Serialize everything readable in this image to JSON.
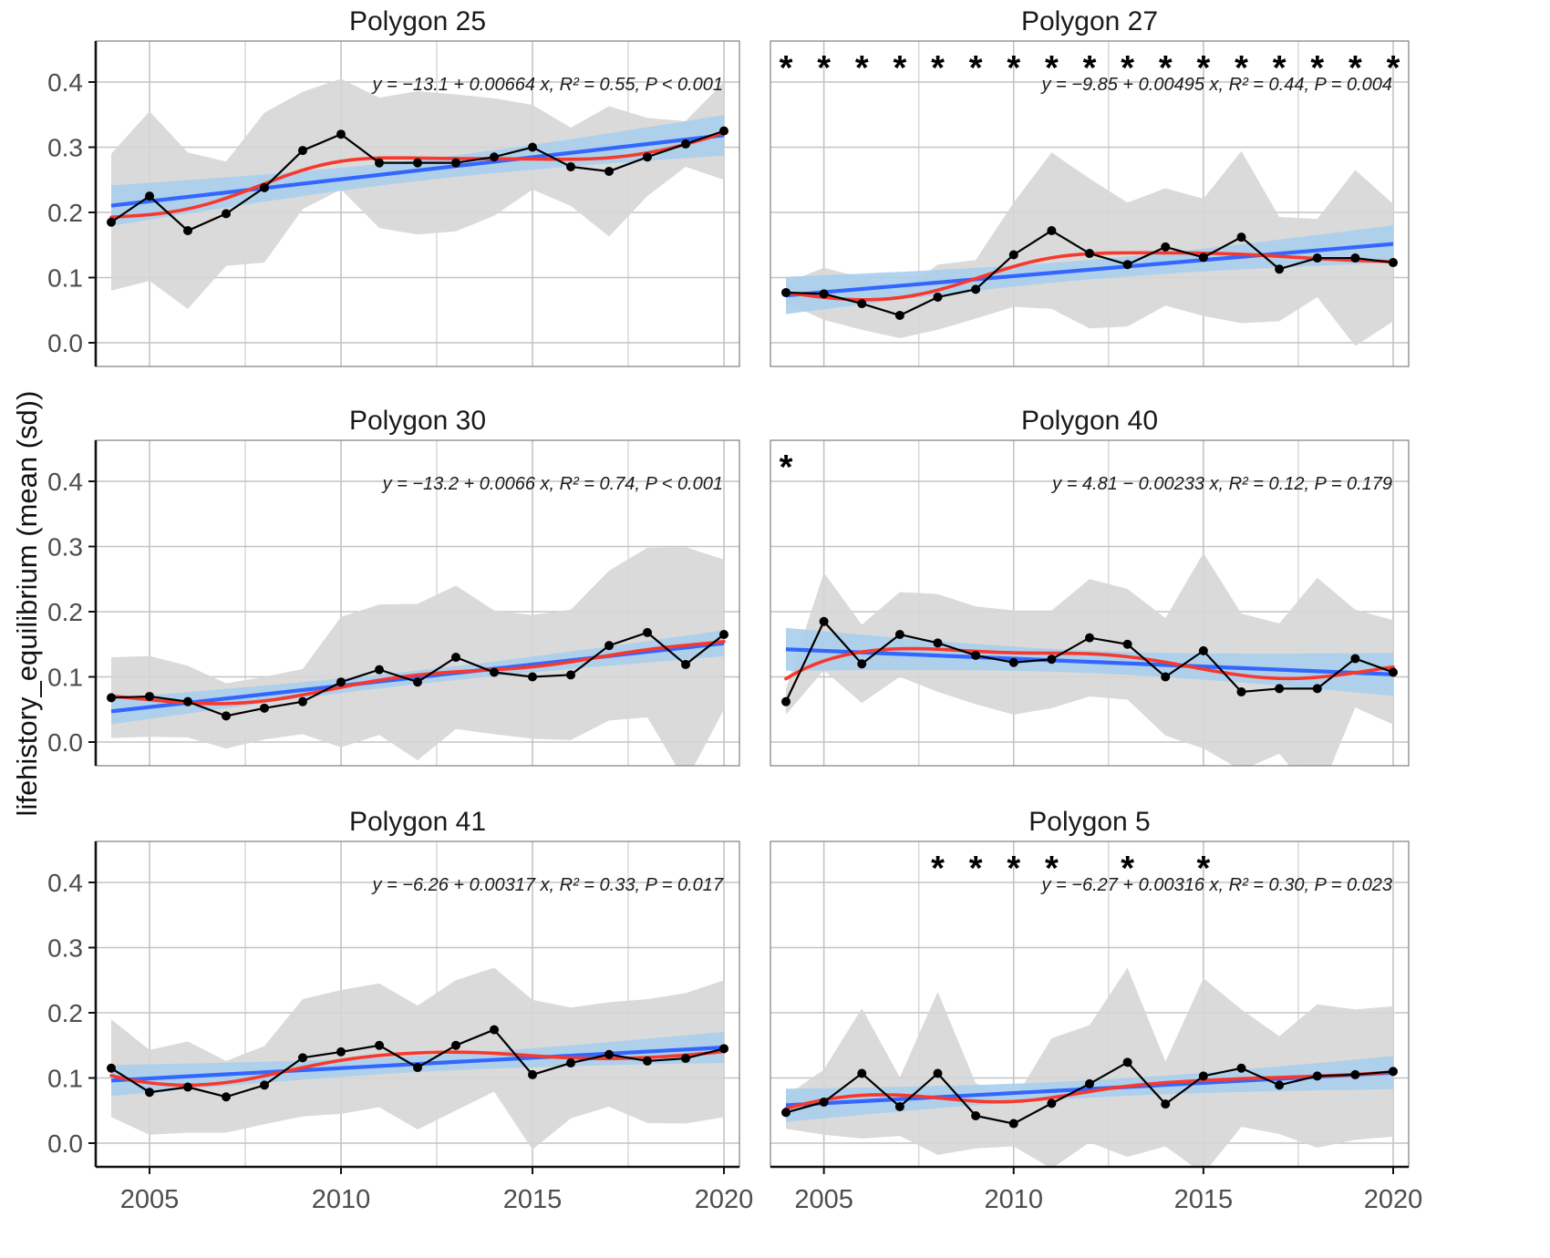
{
  "chart_data": {
    "type": "line",
    "title": "",
    "xlabel": "",
    "ylabel": "lifehistory_equilibrium (mean (sd))",
    "x": [
      2004,
      2005,
      2006,
      2007,
      2008,
      2009,
      2010,
      2011,
      2012,
      2013,
      2014,
      2015,
      2016,
      2017,
      2018,
      2019,
      2020
    ],
    "x_ticks": [
      2005,
      2010,
      2015,
      2020
    ],
    "x_minor_gridlines": [
      2007.5,
      2012.5,
      2017.5
    ],
    "y_ticks": [
      "0.0",
      "0.1",
      "0.2",
      "0.3",
      "0.4"
    ],
    "y_tick_values": [
      0.0,
      0.1,
      0.2,
      0.3,
      0.4
    ],
    "ylim": [
      -0.034,
      0.463
    ],
    "grid": "major-x, minor-x, major-y",
    "legend_position": "none",
    "series_roles": {
      "mean": "black points and line (annual mean)",
      "sd_ribbon": "gray band = mean ± sd",
      "trend": "blue linear regression with light-blue confidence band",
      "loess": "red smoothed curve"
    },
    "panels": [
      {
        "title": "Polygon 25",
        "equation": "y = −13.1 + 0.00664 x, R² = 0.55, P < 0.001",
        "asterisk_years": [],
        "mean": [
          0.185,
          0.225,
          0.172,
          0.198,
          0.238,
          0.295,
          0.32,
          0.276,
          0.276,
          0.276,
          0.285,
          0.3,
          0.27,
          0.263,
          0.285,
          0.305,
          0.325
        ],
        "sd": [
          0.105,
          0.13,
          0.12,
          0.08,
          0.115,
          0.09,
          0.085,
          0.1,
          0.11,
          0.105,
          0.09,
          0.065,
          0.06,
          0.1,
          0.06,
          0.035,
          0.075
        ]
      },
      {
        "title": "Polygon 27",
        "equation": "y = −9.85 + 0.00495 x, R² = 0.44, P = 0.004",
        "asterisk_years": [
          2004,
          2005,
          2006,
          2007,
          2008,
          2009,
          2010,
          2011,
          2012,
          2013,
          2014,
          2015,
          2016,
          2017,
          2018,
          2019,
          2020
        ],
        "mean": [
          0.077,
          0.075,
          0.06,
          0.042,
          0.07,
          0.082,
          0.135,
          0.172,
          0.137,
          0.12,
          0.147,
          0.131,
          0.162,
          0.113,
          0.13,
          0.13,
          0.123
        ],
        "sd": [
          0.015,
          0.04,
          0.04,
          0.035,
          0.05,
          0.045,
          0.08,
          0.12,
          0.115,
          0.095,
          0.09,
          0.09,
          0.132,
          0.08,
          0.06,
          0.135,
          0.09
        ]
      },
      {
        "title": "Polygon 30",
        "equation": "y = −13.2 + 0.0066 x, R² = 0.74, P < 0.001",
        "asterisk_years": [],
        "mean": [
          0.068,
          0.07,
          0.062,
          0.04,
          0.052,
          0.062,
          0.092,
          0.111,
          0.092,
          0.13,
          0.107,
          0.1,
          0.103,
          0.148,
          0.168,
          0.119,
          0.165
        ],
        "sd": [
          0.062,
          0.062,
          0.055,
          0.05,
          0.048,
          0.05,
          0.1,
          0.1,
          0.12,
          0.11,
          0.095,
          0.095,
          0.1,
          0.115,
          0.13,
          0.18,
          0.115
        ]
      },
      {
        "title": "Polygon 40",
        "equation": "y = 4.81 − 0.00233 x, R² = 0.12, P = 0.179",
        "asterisk_years": [
          2004
        ],
        "mean": [
          0.062,
          0.185,
          0.12,
          0.165,
          0.152,
          0.133,
          0.122,
          0.127,
          0.16,
          0.15,
          0.1,
          0.14,
          0.077,
          0.082,
          0.082,
          0.128,
          0.107
        ],
        "sd": [
          0.02,
          0.075,
          0.06,
          0.065,
          0.075,
          0.075,
          0.08,
          0.075,
          0.09,
          0.085,
          0.09,
          0.15,
          0.12,
          0.1,
          0.17,
          0.075,
          0.08
        ]
      },
      {
        "title": "Polygon 41",
        "equation": "y = −6.26 + 0.00317 x, R² = 0.33, P = 0.017",
        "asterisk_years": [],
        "mean": [
          0.115,
          0.078,
          0.086,
          0.071,
          0.089,
          0.131,
          0.14,
          0.15,
          0.116,
          0.15,
          0.174,
          0.105,
          0.123,
          0.136,
          0.126,
          0.13,
          0.145
        ],
        "sd": [
          0.075,
          0.065,
          0.07,
          0.055,
          0.06,
          0.09,
          0.095,
          0.095,
          0.095,
          0.1,
          0.095,
          0.115,
          0.085,
          0.08,
          0.095,
          0.1,
          0.105
        ]
      },
      {
        "title": "Polygon 5",
        "equation": "y = −6.27 + 0.00316 x, R² = 0.30, P = 0.023",
        "asterisk_years": [
          2008,
          2009,
          2010,
          2011,
          2013,
          2015
        ],
        "mean": [
          0.047,
          0.063,
          0.107,
          0.056,
          0.107,
          0.042,
          0.03,
          0.061,
          0.091,
          0.124,
          0.06,
          0.103,
          0.115,
          0.089,
          0.103,
          0.105,
          0.11
        ],
        "sd": [
          0.025,
          0.05,
          0.1,
          0.045,
          0.125,
          0.05,
          0.035,
          0.1,
          0.09,
          0.145,
          0.065,
          0.15,
          0.09,
          0.075,
          0.11,
          0.1,
          0.1
        ]
      }
    ],
    "colors": {
      "mean_line": "#000000",
      "point": "#000000",
      "loess": "#F8382D",
      "trend": "#3366FF",
      "ci_band": "#A8CEEC",
      "sd_band": "#D6D6D6",
      "grid_major": "#C4C4C4",
      "grid_minor": "#DADADA",
      "panel_border": "#7F7F7F",
      "axis_line": "#111111",
      "tick_label": "#4D4D4D",
      "title_text": "#1A1A1A",
      "background": "#FFFFFF"
    }
  }
}
